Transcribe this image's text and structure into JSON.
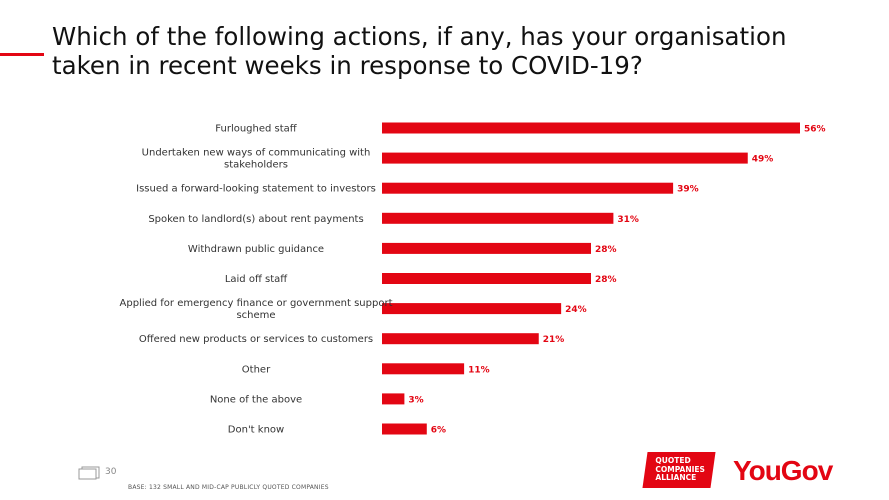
{
  "title": "Which of the following actions, if any, has your organisation taken in recent weeks in response to COVID-19?",
  "page_number": "30",
  "base_note": "Base: 132 small and mid-cap publicly quoted companies",
  "logos": {
    "qca": "QUOTED\nCOMPANIES\nALLIANCE",
    "yougov": "YouGov"
  },
  "colors": {
    "accent": "#e30613"
  },
  "chart_data": {
    "type": "bar",
    "orientation": "horizontal",
    "categories": [
      [
        "Furloughed staff"
      ],
      [
        "Undertaken new ways of communicating with",
        "stakeholders"
      ],
      [
        "Issued a forward-looking statement to investors"
      ],
      [
        "Spoken to landlord(s) about rent payments"
      ],
      [
        "Withdrawn public guidance"
      ],
      [
        "Laid off staff"
      ],
      [
        "Applied for emergency finance or government support",
        "scheme"
      ],
      [
        "Offered new products or services to customers"
      ],
      [
        "Other"
      ],
      [
        "None of the above"
      ],
      [
        "Don't know"
      ]
    ],
    "values": [
      56,
      49,
      39,
      31,
      28,
      28,
      24,
      21,
      11,
      3,
      6
    ],
    "value_labels": [
      "56%",
      "49%",
      "39%",
      "31%",
      "28%",
      "28%",
      "24%",
      "21%",
      "11%",
      "3%",
      "6%"
    ],
    "xlim": [
      0,
      56
    ],
    "grid": false,
    "legend": "none"
  }
}
